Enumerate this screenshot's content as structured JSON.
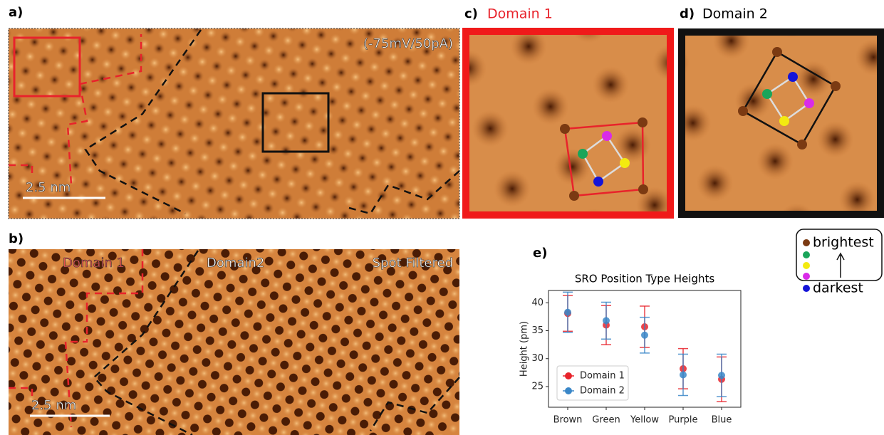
{
  "panels": {
    "a": {
      "label": "a)",
      "bias": "(-75mV/50pA)",
      "scale": "2.5 nm"
    },
    "b": {
      "label": "b)",
      "domain1": "Domain 1",
      "domain2": "Domain2",
      "filter": "Spot Filtered",
      "scale": "2.5 nm"
    },
    "c": {
      "label": "c)",
      "title": "Domain 1"
    },
    "d": {
      "label": "d)",
      "title": "Domain 2"
    },
    "e": {
      "label": "e)"
    }
  },
  "key": {
    "top": "brightest",
    "bottom": "darkest"
  },
  "chart_data": {
    "type": "errorbar",
    "title": "SRO Position Type Heights",
    "y_label": "Height (pm)",
    "categories": [
      "Brown",
      "Green",
      "Yellow",
      "Purple",
      "Blue"
    ],
    "ylim": [
      21.3,
      42.2
    ],
    "yticks": [
      25,
      30,
      35,
      40
    ],
    "legend": "lower left",
    "series": [
      {
        "name": "Domain 1",
        "color": "#e8232b",
        "values": [
          38.1,
          36.0,
          35.7,
          28.2,
          26.3
        ],
        "errors": [
          3.2,
          3.5,
          3.7,
          3.6,
          4.0
        ]
      },
      {
        "name": "Domain 2",
        "color": "#3a87c8",
        "values": [
          38.3,
          36.8,
          34.2,
          27.1,
          27.0
        ],
        "errors": [
          3.6,
          3.3,
          3.2,
          3.7,
          3.8
        ]
      }
    ]
  }
}
